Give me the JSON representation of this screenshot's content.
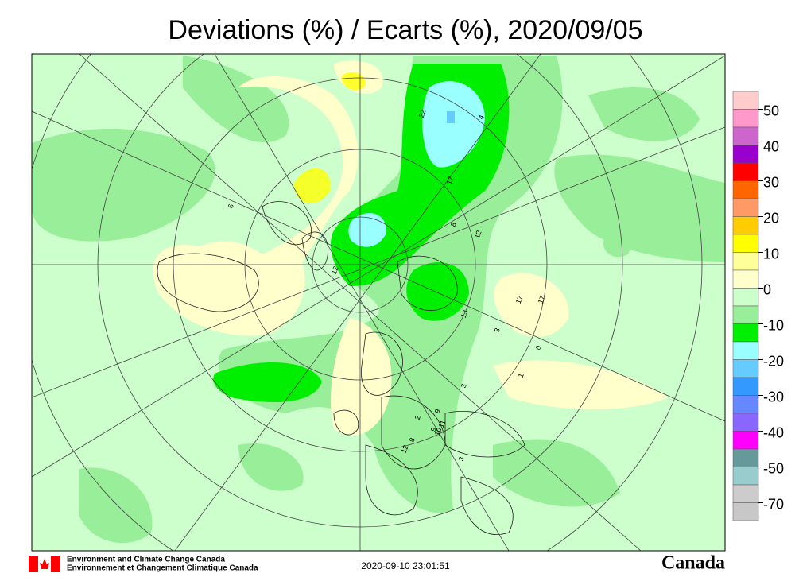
{
  "header": {
    "title": "Deviations (%) / Ecarts (%), 2020/09/05"
  },
  "legend": {
    "labels": [
      50,
      40,
      30,
      20,
      10,
      0,
      -10,
      -20,
      -30,
      -40,
      -50,
      -70
    ],
    "colors": [
      "#ffcccc",
      "#ff99cc",
      "#cc66cc",
      "#9900cc",
      "#ff0000",
      "#ff6600",
      "#ff9966",
      "#ffcc00",
      "#ffff00",
      "#ffff99",
      "#ffffcc",
      "#ccffcc",
      "#99ee99",
      "#00ee00",
      "#99ffff",
      "#66ccff",
      "#3399ff",
      "#6688ff",
      "#8866ff",
      "#ff00ff",
      "#669999",
      "#99cccc",
      "#cccccc",
      "#c8c8c8"
    ]
  },
  "stations": [
    "22",
    "4",
    "17",
    "12",
    "8",
    "6",
    "13",
    "9",
    "3",
    "17",
    "17",
    "3",
    "0",
    "1",
    "2",
    "9",
    "11",
    "10",
    "8",
    "12",
    "3",
    "12"
  ],
  "footer": {
    "agency_en": "Environment and Climate Change Canada",
    "agency_fr": "Environnement et Changement Climatique Canada",
    "timestamp": "2020-09-10 23:01:51",
    "wordmark": "Canada"
  }
}
